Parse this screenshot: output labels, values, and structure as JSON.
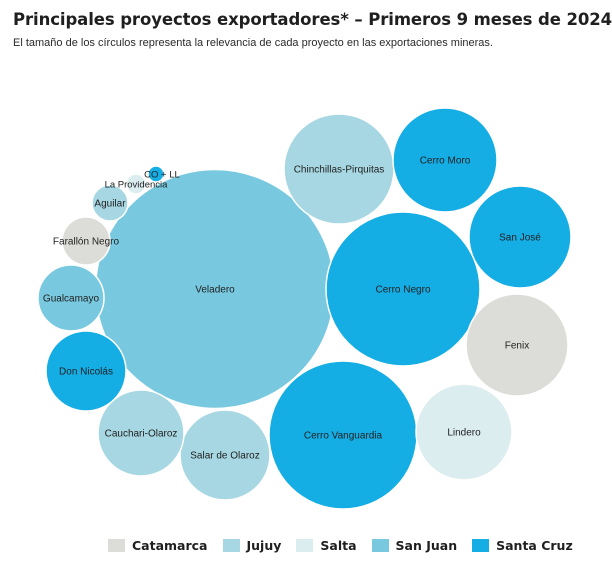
{
  "chart_data": {
    "type": "bubble",
    "title": "Principales proyectos exportadores* – Primeros 9 meses de 2024",
    "subtitle": "El tamaño de los círculos representa la relevancia de cada proyecto en las exportaciones mineras.",
    "legend_position": "bottom",
    "provinces": [
      {
        "name": "Catamarca",
        "color": "#dcdcd8"
      },
      {
        "name": "Jujuy",
        "color": "#a6d7e2"
      },
      {
        "name": "Salta",
        "color": "#dcedf0"
      },
      {
        "name": "San Juan",
        "color": "#78c9df"
      },
      {
        "name": "Santa Cruz",
        "color": "#14ade4"
      }
    ],
    "projects": [
      {
        "name": "Veladero",
        "province": "San Juan",
        "value": 14269
      },
      {
        "name": "Cerro Negro",
        "province": "Santa Cruz",
        "value": 5929
      },
      {
        "name": "Cerro Vanguardia",
        "province": "Santa Cruz",
        "value": 5476
      },
      {
        "name": "Chinchillas-Pirquitas",
        "province": "Jujuy",
        "value": 3025
      },
      {
        "name": "Cerro Moro",
        "province": "Santa Cruz",
        "value": 2704
      },
      {
        "name": "San José",
        "province": "Santa Cruz",
        "value": 2601
      },
      {
        "name": "Fenix",
        "province": "Catamarca",
        "value": 2601
      },
      {
        "name": "Lindero",
        "province": "Salta",
        "value": 2304
      },
      {
        "name": "Salar de Olaroz",
        "province": "Jujuy",
        "value": 2025
      },
      {
        "name": "Cauchari-Olaroz",
        "province": "Jujuy",
        "value": 1849
      },
      {
        "name": "Don Nicolás",
        "province": "Santa Cruz",
        "value": 1600
      },
      {
        "name": "Gualcamayo",
        "province": "San Juan",
        "value": 1089
      },
      {
        "name": "Farallón Negro",
        "province": "Catamarca",
        "value": 576
      },
      {
        "name": "Aguilar",
        "province": "Jujuy",
        "value": 324
      },
      {
        "name": "La Providencia",
        "province": "Salta",
        "value": 100
      },
      {
        "name": "CO + LL",
        "province": "Santa Cruz",
        "value": 64
      }
    ]
  }
}
